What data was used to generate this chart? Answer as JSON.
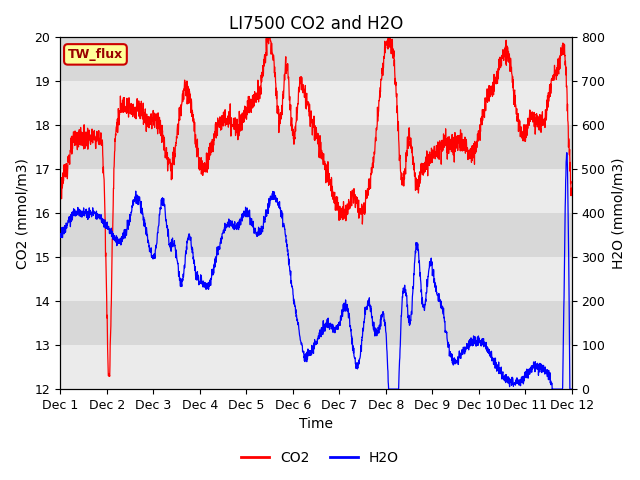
{
  "title": "LI7500 CO2 and H2O",
  "xlabel": "Time",
  "ylabel_left": "CO2 (mmol/m3)",
  "ylabel_right": "H2O (mmol/m3)",
  "ylim_left": [
    12.0,
    20.0
  ],
  "ylim_right": [
    0,
    800
  ],
  "yticks_left": [
    12.0,
    13.0,
    14.0,
    15.0,
    16.0,
    17.0,
    18.0,
    19.0,
    20.0
  ],
  "yticks_right": [
    0,
    100,
    200,
    300,
    400,
    500,
    600,
    700,
    800
  ],
  "xtick_labels": [
    "Dec 1",
    "Dec 2",
    "Dec 3",
    "Dec 4",
    "Dec 5",
    "Dec 6",
    "Dec 7",
    "Dec 8",
    "Dec 9",
    "Dec 10",
    "Dec 11",
    "Dec 12"
  ],
  "co2_color": "red",
  "h2o_color": "blue",
  "stripe_light": "#ebebeb",
  "stripe_dark": "#d8d8d8",
  "annotation_text": "TW_flux",
  "annotation_bg": "#ffff99",
  "annotation_edge": "#cc0000",
  "legend_co2": "CO2",
  "legend_h2o": "H2O",
  "title_fontsize": 12,
  "axis_label_fontsize": 10,
  "tick_fontsize": 9
}
